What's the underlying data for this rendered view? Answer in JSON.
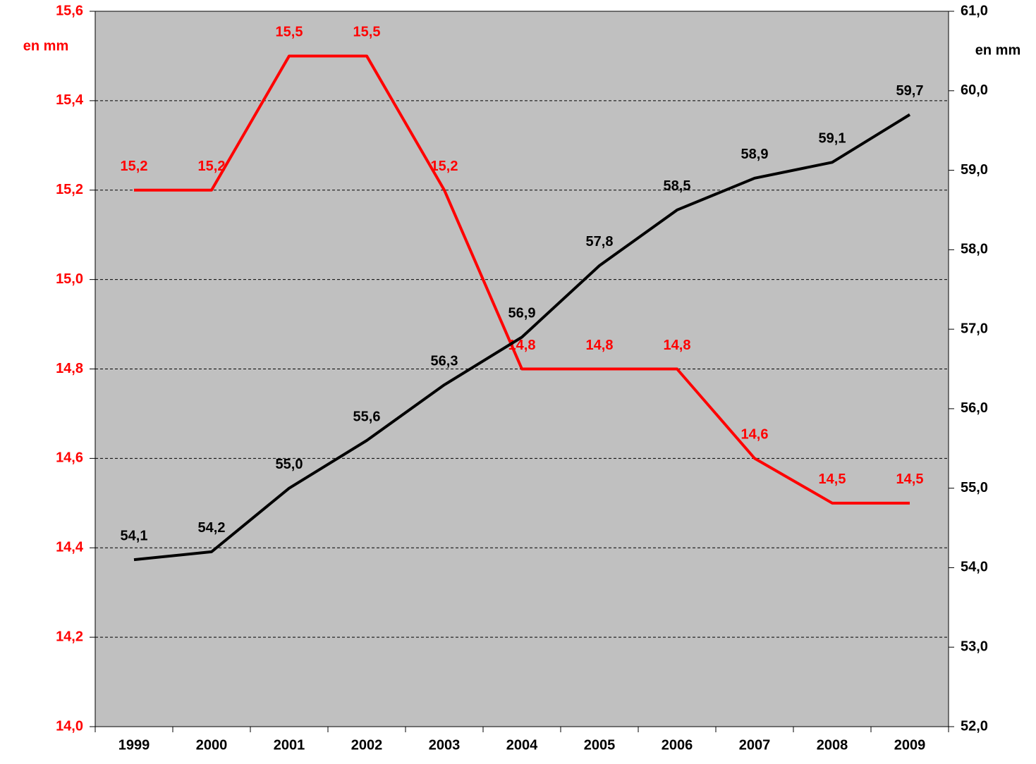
{
  "chart_data": {
    "type": "line",
    "ylabel": "en mm",
    "y2label": "en mm",
    "categories": [
      "1999",
      "2000",
      "2001",
      "2002",
      "2003",
      "2004",
      "2005",
      "2006",
      "2007",
      "2008",
      "2009"
    ],
    "series": [
      {
        "color": "#ff0000",
        "values": [
          15.2,
          15.2,
          15.5,
          15.5,
          15.2,
          14.8,
          14.8,
          14.8,
          14.6,
          14.5,
          14.5
        ],
        "value_labels": [
          "15,2",
          "15,2",
          "15,5",
          "15,5",
          "15,2",
          "14,8",
          "14,8",
          "14,8",
          "14,6",
          "14,5",
          "14,5"
        ]
      },
      {
        "color": "#000000",
        "axis": "y2",
        "values": [
          54.1,
          54.2,
          55.0,
          55.6,
          56.3,
          56.9,
          57.8,
          58.5,
          58.9,
          59.1,
          59.7
        ],
        "value_labels": [
          "54,1",
          "54,2",
          "55,0",
          "55,6",
          "56,3",
          "56,9",
          "57,8",
          "58,5",
          "58,9",
          "59,1",
          "59,7"
        ]
      }
    ],
    "ylim": [
      14.0,
      15.6
    ],
    "yticks": [
      {
        "value": 14.0,
        "label": "14,0"
      },
      {
        "value": 14.2,
        "label": "14,2"
      },
      {
        "value": 14.4,
        "label": "14,4"
      },
      {
        "value": 14.6,
        "label": "14,6"
      },
      {
        "value": 14.8,
        "label": "14,8"
      },
      {
        "value": 15.0,
        "label": "15,0"
      },
      {
        "value": 15.2,
        "label": "15,2"
      },
      {
        "value": 15.4,
        "label": "15,4"
      },
      {
        "value": 15.6,
        "label": "15,6"
      }
    ],
    "y2lim": [
      52.0,
      61.0
    ],
    "y2ticks": [
      {
        "value": 52.0,
        "label": "52,0"
      },
      {
        "value": 53.0,
        "label": "53,0"
      },
      {
        "value": 54.0,
        "label": "54,0"
      },
      {
        "value": 55.0,
        "label": "55,0"
      },
      {
        "value": 56.0,
        "label": "56,0"
      },
      {
        "value": 57.0,
        "label": "57,0"
      },
      {
        "value": 58.0,
        "label": "58,0"
      },
      {
        "value": 59.0,
        "label": "59,0"
      },
      {
        "value": 60.0,
        "label": "60,0"
      },
      {
        "value": 61.0,
        "label": "61,0"
      }
    ],
    "grid": true,
    "background": "#c0c0c0"
  }
}
